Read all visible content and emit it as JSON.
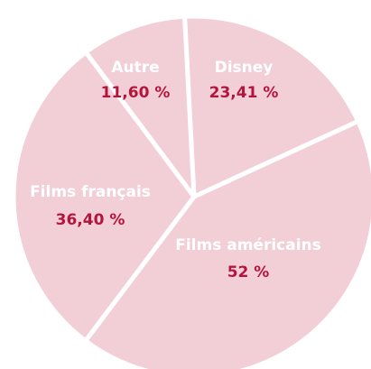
{
  "chart_data": {
    "type": "pie",
    "categories": [
      "Disney",
      "Films américains",
      "Films français",
      "Autre"
    ],
    "values": [
      23.41,
      52,
      36.4,
      11.6
    ],
    "value_labels": [
      "23,41 %",
      "52 %",
      "36,40 %",
      "11,60 %"
    ],
    "color": "#f2cfd6"
  }
}
